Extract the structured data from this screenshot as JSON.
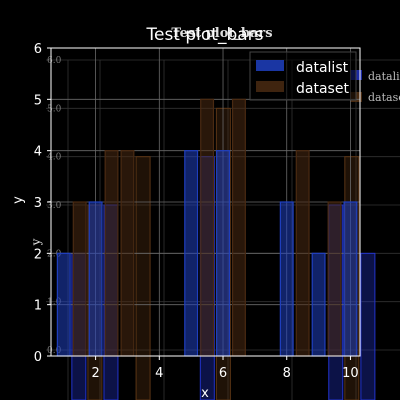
{
  "chart_data": [
    {
      "type": "bar",
      "title": "Test plot_bars",
      "xlabel": "x",
      "ylabel": "y",
      "xlim": [
        0.6,
        10.3
      ],
      "ylim": [
        0,
        6
      ],
      "grid": true,
      "legend_position": "top-right",
      "x_ticks": [
        {
          "value": 2,
          "label": "2"
        },
        {
          "value": 4,
          "label": "4"
        },
        {
          "value": 6,
          "label": "6"
        },
        {
          "value": 8,
          "label": "8"
        },
        {
          "value": 10,
          "label": "10"
        }
      ],
      "y_ticks": [
        {
          "value": 0,
          "label": "0"
        },
        {
          "value": 1,
          "label": "1"
        },
        {
          "value": 2,
          "label": "2"
        },
        {
          "value": 3,
          "label": "3"
        },
        {
          "value": 4,
          "label": "4"
        },
        {
          "value": 5,
          "label": "5"
        },
        {
          "value": 6,
          "label": "6"
        }
      ],
      "series": [
        {
          "name": "datalist",
          "color": "#1f3fbf",
          "points": [
            {
              "x": 1,
              "y": 2
            },
            {
              "x": 2,
              "y": 3
            },
            {
              "x": 5,
              "y": 4
            },
            {
              "x": 6,
              "y": 4
            },
            {
              "x": 8,
              "y": 3
            },
            {
              "x": 9,
              "y": 2
            },
            {
              "x": 10,
              "y": 3
            }
          ]
        },
        {
          "name": "dataset",
          "color": "#4a2a12",
          "points": [
            {
              "x": 1.5,
              "y": 3
            },
            {
              "x": 2.5,
              "y": 4
            },
            {
              "x": 3,
              "y": 4
            },
            {
              "x": 5.5,
              "y": 5
            },
            {
              "x": 6.5,
              "y": 5
            },
            {
              "x": 8.5,
              "y": 4
            },
            {
              "x": 9.5,
              "y": 3
            }
          ]
        }
      ]
    },
    {
      "type": "bar",
      "title": "Test plot_bars",
      "xlabel": "x",
      "ylabel": "y",
      "ylim": [
        0,
        6
      ],
      "grid": true,
      "legend_position": "top-right",
      "y_ticks": [
        {
          "value": 0,
          "label": "0.0"
        },
        {
          "value": 1,
          "label": "1.0"
        },
        {
          "value": 2,
          "label": "2.0"
        },
        {
          "value": 3,
          "label": "3.0"
        },
        {
          "value": 4,
          "label": "4.0"
        },
        {
          "value": 5,
          "label": "5.0"
        },
        {
          "value": 6,
          "label": "6.0"
        }
      ],
      "series": [
        {
          "name": "datalist",
          "color": "#2233cc",
          "points": [
            {
              "x": 1,
              "y": 2
            },
            {
              "x": 2,
              "y": 3
            },
            {
              "x": 5,
              "y": 4
            },
            {
              "x": 9,
              "y": 3
            },
            {
              "x": 10,
              "y": 2
            }
          ]
        },
        {
          "name": "dataset",
          "color": "#5a3414",
          "points": [
            {
              "x": 1.5,
              "y": 3
            },
            {
              "x": 3,
              "y": 4
            },
            {
              "x": 5.5,
              "y": 5
            },
            {
              "x": 9.5,
              "y": 4
            }
          ]
        }
      ]
    }
  ]
}
